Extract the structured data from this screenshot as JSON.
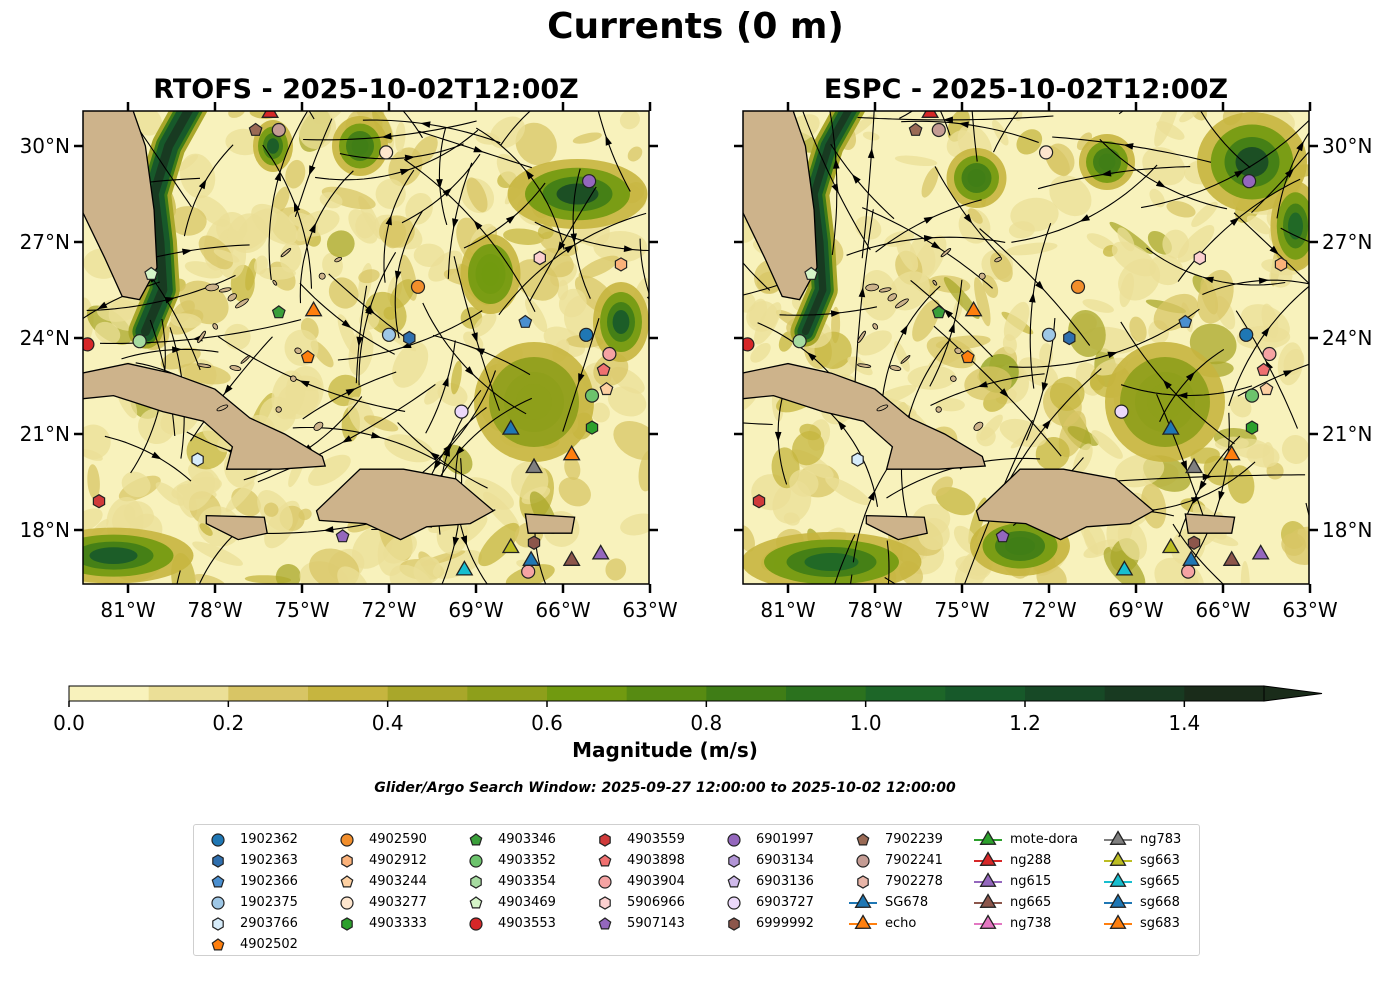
{
  "figure": {
    "title": "Currents (0 m)",
    "colorbar_label": "Magnitude (m/s)",
    "colorbar_ticks": [
      "0.0",
      "0.2",
      "0.4",
      "0.6",
      "0.8",
      "1.0",
      "1.2",
      "1.4"
    ],
    "colorbar_colors": [
      "#f8f2bc",
      "#ebdf97",
      "#d8c565",
      "#c6b53f",
      "#a9a72a",
      "#8e9f1b",
      "#719a10",
      "#578b12",
      "#3f7d16",
      "#2b721e",
      "#1d6628",
      "#17592a",
      "#174926",
      "#183a21",
      "#1a2c1a"
    ],
    "search_window": "Glider/Argo Search Window: 2025-09-27 12:00:00 to 2025-10-02 12:00:00"
  },
  "panels": [
    {
      "title": "RTOFS - 2025-10-02T12:00Z",
      "model": "RTOFS"
    },
    {
      "title": "ESPC - 2025-10-02T12:00Z",
      "model": "ESPC"
    }
  ],
  "axes": {
    "lon_ticks": [
      "81°W",
      "78°W",
      "75°W",
      "72°W",
      "69°W",
      "66°W",
      "63°W"
    ],
    "lat_ticks": [
      "30°N",
      "27°N",
      "24°N",
      "21°N",
      "18°N"
    ]
  },
  "legend": [
    [
      {
        "label": "1902362",
        "marker": "circle",
        "color": "#1f77b4"
      },
      {
        "label": "1902363",
        "marker": "hexagon",
        "color": "#2f6fae"
      },
      {
        "label": "1902366",
        "marker": "pentagon",
        "color": "#4a8fd0"
      },
      {
        "label": "1902375",
        "marker": "circle",
        "color": "#9ec7e6"
      },
      {
        "label": "2903766",
        "marker": "hexagon",
        "color": "#d7ecfa"
      },
      {
        "label": "4902502",
        "marker": "pentagon",
        "color": "#ff7f0e"
      }
    ],
    [
      {
        "label": "4902590",
        "marker": "circle",
        "color": "#f28e2b"
      },
      {
        "label": "4902912",
        "marker": "hexagon",
        "color": "#fbb27a"
      },
      {
        "label": "4903244",
        "marker": "pentagon",
        "color": "#fdd0a2"
      },
      {
        "label": "4903277",
        "marker": "circle",
        "color": "#fee6ce"
      },
      {
        "label": "4903333",
        "marker": "hexagon",
        "color": "#2ca02c"
      }
    ],
    [
      {
        "label": "4903346",
        "marker": "pentagon",
        "color": "#3a9f3a"
      },
      {
        "label": "4903352",
        "marker": "circle",
        "color": "#6cc36c"
      },
      {
        "label": "4903354",
        "marker": "hexagon",
        "color": "#a6dba0"
      },
      {
        "label": "4903469",
        "marker": "pentagon",
        "color": "#d5f5c8"
      },
      {
        "label": "4903553",
        "marker": "circle",
        "color": "#d62728"
      }
    ],
    [
      {
        "label": "4903559",
        "marker": "hexagon",
        "color": "#d03a3a"
      },
      {
        "label": "4903898",
        "marker": "pentagon",
        "color": "#f07070"
      },
      {
        "label": "4903904",
        "marker": "circle",
        "color": "#f5a3a3"
      },
      {
        "label": "5906966",
        "marker": "hexagon",
        "color": "#fcd0d0"
      },
      {
        "label": "5907143",
        "marker": "pentagon",
        "color": "#9467bd"
      }
    ],
    [
      {
        "label": "6901997",
        "marker": "circle",
        "color": "#9467bd"
      },
      {
        "label": "6903134",
        "marker": "hexagon",
        "color": "#b295d6"
      },
      {
        "label": "6903136",
        "marker": "pentagon",
        "color": "#cfb9ea"
      },
      {
        "label": "6903727",
        "marker": "circle",
        "color": "#ecd9fb"
      },
      {
        "label": "6999992",
        "marker": "hexagon",
        "color": "#8c564b"
      }
    ],
    [
      {
        "label": "7902239",
        "marker": "pentagon",
        "color": "#9a6a55"
      },
      {
        "label": "7902241",
        "marker": "circle",
        "color": "#c49c94"
      },
      {
        "label": "7902278",
        "marker": "hexagon",
        "color": "#e8b5a8"
      },
      {
        "label": "SG678",
        "marker": "triangle",
        "color": "#1f77b4"
      },
      {
        "label": "echo",
        "marker": "triangle",
        "color": "#ff7f0e"
      }
    ],
    [
      {
        "label": "mote-dora",
        "marker": "triangle",
        "color": "#2ca02c"
      },
      {
        "label": "ng288",
        "marker": "triangle",
        "color": "#d62728"
      },
      {
        "label": "ng615",
        "marker": "triangle",
        "color": "#9467bd"
      },
      {
        "label": "ng665",
        "marker": "triangle",
        "color": "#8c564b"
      },
      {
        "label": "ng738",
        "marker": "triangle",
        "color": "#e377c2"
      }
    ],
    [
      {
        "label": "ng783",
        "marker": "triangle",
        "color": "#7f7f7f"
      },
      {
        "label": "sg663",
        "marker": "triangle",
        "color": "#bcbd22"
      },
      {
        "label": "sg665",
        "marker": "triangle",
        "color": "#17becf"
      },
      {
        "label": "sg668",
        "marker": "triangle",
        "color": "#1f77b4"
      },
      {
        "label": "sg683",
        "marker": "triangle",
        "color": "#ff7f0e"
      }
    ]
  ]
}
